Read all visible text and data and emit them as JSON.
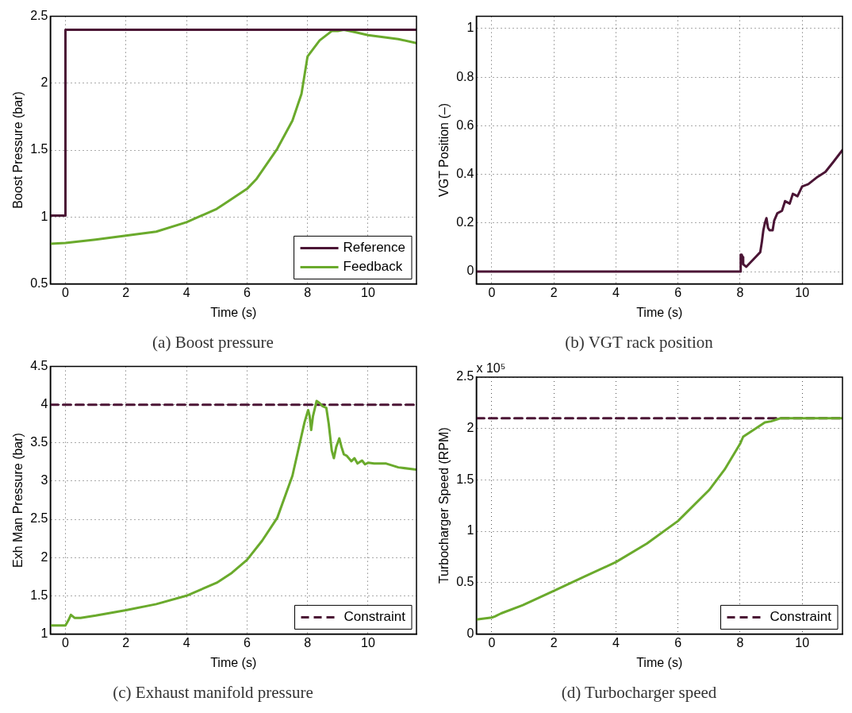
{
  "chart_data": [
    {
      "type": "line",
      "title": "(a) Boost pressure",
      "xlabel": "Time (s)",
      "ylabel": "Boost Pressure (bar)",
      "xlim": [
        -0.5,
        11.6
      ],
      "xticks": [
        0,
        2,
        4,
        6,
        8,
        10
      ],
      "ylim": [
        0.5,
        2.5
      ],
      "yticks": [
        0.5,
        1,
        1.5,
        2,
        2.5
      ],
      "grid": true,
      "legend": "bottom right",
      "line_style": "solid",
      "series": [
        {
          "name": "Reference",
          "color": "#4b1535",
          "x": [
            -0.5,
            0,
            0,
            11.6
          ],
          "values": [
            1.01,
            1.01,
            2.4,
            2.4
          ]
        },
        {
          "name": "Feedback",
          "color": "#6aaa2c",
          "x": [
            -0.5,
            0,
            1,
            2,
            3,
            4,
            5,
            6,
            6.3,
            7,
            7.5,
            7.8,
            8,
            8.4,
            8.8,
            9,
            9.2,
            9.6,
            10,
            11,
            11.6
          ],
          "values": [
            0.8,
            0.805,
            0.83,
            0.86,
            0.89,
            0.96,
            1.06,
            1.21,
            1.28,
            1.51,
            1.72,
            1.92,
            2.2,
            2.32,
            2.39,
            2.39,
            2.4,
            2.38,
            2.36,
            2.33,
            2.3
          ]
        }
      ]
    },
    {
      "type": "line",
      "title": "(b) VGT rack position",
      "xlabel": "Time (s)",
      "ylabel": "VGT Position (–)",
      "xlim": [
        -0.5,
        11.3
      ],
      "xticks": [
        0,
        2,
        4,
        6,
        8,
        10
      ],
      "ylim": [
        -0.05,
        1.05
      ],
      "yticks": [
        0,
        0.2,
        0.4,
        0.6,
        0.8,
        1
      ],
      "grid": true,
      "line_style": "solid",
      "series": [
        {
          "color": "#4b1535",
          "x": [
            -0.5,
            8.02,
            8.02,
            8.05,
            8.08,
            8.1,
            8.2,
            8.5,
            8.65,
            8.7,
            8.75,
            8.8,
            8.85,
            8.9,
            8.95,
            9.05,
            9.1,
            9.2,
            9.35,
            9.45,
            9.6,
            9.7,
            9.85,
            10,
            10.2,
            10.5,
            10.75,
            11,
            11.3
          ],
          "values": [
            0,
            0,
            0.07,
            0.07,
            0.06,
            0.03,
            0.02,
            0.06,
            0.08,
            0.12,
            0.17,
            0.2,
            0.22,
            0.18,
            0.17,
            0.17,
            0.21,
            0.24,
            0.25,
            0.29,
            0.28,
            0.32,
            0.31,
            0.35,
            0.36,
            0.39,
            0.41,
            0.45,
            0.5
          ]
        }
      ]
    },
    {
      "type": "line",
      "title": "(c) Exhaust manifold pressure",
      "xlabel": "Time (s)",
      "ylabel": "Exh Man Pressure (bar)",
      "xlim": [
        -0.5,
        11.6
      ],
      "xticks": [
        0,
        2,
        4,
        6,
        8,
        10
      ],
      "ylim": [
        1,
        4.5
      ],
      "yticks": [
        1,
        1.5,
        2,
        2.5,
        3,
        3.5,
        4,
        4.5
      ],
      "grid": true,
      "legend": "bottom right",
      "line_style": "solid",
      "series": [
        {
          "color": "#6aaa2c",
          "x": [
            -0.5,
            0,
            0.1,
            0.18,
            0.3,
            0.5,
            1,
            2,
            3,
            4,
            5,
            5.5,
            6,
            6.5,
            7,
            7.5,
            7.9,
            8.02,
            8.07,
            8.12,
            8.18,
            8.3,
            8.4,
            8.5,
            8.62,
            8.7,
            8.8,
            8.87,
            8.95,
            9.05,
            9.12,
            9.2,
            9.3,
            9.45,
            9.55,
            9.65,
            9.8,
            9.9,
            10,
            10.2,
            10.6,
            11,
            11.6
          ],
          "values": [
            1.11,
            1.11,
            1.18,
            1.25,
            1.21,
            1.21,
            1.24,
            1.31,
            1.39,
            1.5,
            1.67,
            1.8,
            1.97,
            2.22,
            2.52,
            3.07,
            3.77,
            3.93,
            3.85,
            3.67,
            3.85,
            4.05,
            4.02,
            3.98,
            3.96,
            3.75,
            3.4,
            3.3,
            3.45,
            3.56,
            3.45,
            3.35,
            3.33,
            3.26,
            3.3,
            3.23,
            3.27,
            3.22,
            3.24,
            3.23,
            3.23,
            3.18,
            3.15
          ]
        }
      ],
      "ref_lines": [
        {
          "axis": "y",
          "value": 4,
          "label": "Constraint",
          "color": "#4b1535",
          "line_style": "dashed"
        }
      ]
    },
    {
      "type": "line",
      "title": "(d) Turbocharger speed",
      "xlabel": "Time (s)",
      "ylabel": "Turbocharger Speed (RPM)",
      "xlim": [
        -0.5,
        11.3
      ],
      "xticks": [
        0,
        2,
        4,
        6,
        8,
        10
      ],
      "ylim": [
        0,
        2.5
      ],
      "yticks": [
        0,
        0.5,
        1,
        1.5,
        2,
        2.5
      ],
      "grid": true,
      "legend": "bottom right",
      "line_style": "solid",
      "annotations": [
        "x 10⁵"
      ],
      "series": [
        {
          "color": "#6aaa2c",
          "x": [
            -0.5,
            0,
            0.1,
            0.3,
            1,
            2,
            3,
            4,
            5,
            6,
            7,
            7.5,
            8,
            8.1,
            8.5,
            8.8,
            9,
            9.3,
            10,
            11.3
          ],
          "values": [
            0.14,
            0.16,
            0.17,
            0.2,
            0.28,
            0.42,
            0.56,
            0.7,
            0.88,
            1.1,
            1.4,
            1.6,
            1.85,
            1.92,
            2,
            2.06,
            2.07,
            2.1,
            2.1,
            2.1
          ]
        }
      ],
      "ref_lines": [
        {
          "axis": "y",
          "value": 2.1,
          "label": "Constraint",
          "color": "#4b1535",
          "line_style": "dashed"
        }
      ]
    }
  ]
}
